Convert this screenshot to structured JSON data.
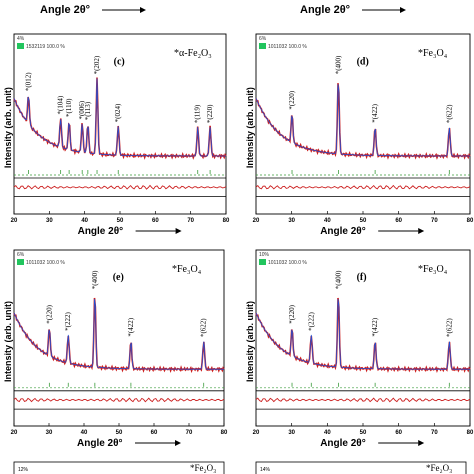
{
  "figure": {
    "top_strip": {
      "left_xlabel": "Angle 2θ°",
      "right_xlabel": "Angle 2θ°"
    },
    "panels": [
      {
        "id": "c",
        "panel_label": "(c)",
        "percent_tag": "4%",
        "card_text": "1532119 100.0 %",
        "phase_label": "*α-Fe₂O₃",
        "ylabel": "Intensity (arb. unit)",
        "xlabel": "Angle 2θ°",
        "xticks": [
          "20",
          "30",
          "40",
          "50",
          "60",
          "70",
          "80"
        ],
        "peaks": [
          {
            "x": 24.1,
            "label": "*(012)"
          },
          {
            "x": 33.2,
            "label": "*(104)"
          },
          {
            "x": 35.6,
            "label": "*(110)"
          },
          {
            "x": 39.3,
            "label": "*(006)"
          },
          {
            "x": 40.9,
            "label": "*(113)"
          },
          {
            "x": 43.5,
            "label": "*(202)"
          },
          {
            "x": 49.5,
            "label": "*(024)"
          },
          {
            "x": 72.0,
            "label": "*(119)"
          },
          {
            "x": 75.5,
            "label": "*(220)"
          }
        ],
        "accent_color": "#22c55e",
        "observed_color": "#cc1f1f",
        "calc_color": "#1f4fd6"
      },
      {
        "id": "d",
        "panel_label": "(d)",
        "percent_tag": "6%",
        "card_text": "1011032 100.0 %",
        "phase_label": "*Fe₃O₄",
        "ylabel": "Intensity (arb. unit)",
        "xlabel": "Angle 2θ°",
        "xticks": [
          "20",
          "30",
          "40",
          "50",
          "60",
          "70",
          "80"
        ],
        "peaks": [
          {
            "x": 30.1,
            "label": "*(220)"
          },
          {
            "x": 43.1,
            "label": "*(400)"
          },
          {
            "x": 53.4,
            "label": "*(422)"
          },
          {
            "x": 74.2,
            "label": "*(622)"
          }
        ],
        "accent_color": "#22c55e",
        "observed_color": "#cc1f1f",
        "calc_color": "#1f4fd6"
      },
      {
        "id": "e",
        "panel_label": "(e)",
        "percent_tag": "6%",
        "card_text": "1011032 100.0 %",
        "phase_label": "*Fe₃O₄",
        "ylabel": "Intensity (arb. unit)",
        "xlabel": "Angle 2θ°",
        "xticks": [
          "20",
          "30",
          "40",
          "50",
          "60",
          "70",
          "80"
        ],
        "peaks": [
          {
            "x": 30.1,
            "label": "*(220)"
          },
          {
            "x": 35.5,
            "label": "*(222)"
          },
          {
            "x": 43.1,
            "label": "*(400)"
          },
          {
            "x": 53.4,
            "label": "*(422)"
          },
          {
            "x": 74.2,
            "label": "*(622)"
          }
        ],
        "accent_color": "#22c55e",
        "observed_color": "#cc1f1f",
        "calc_color": "#1f4fd6"
      },
      {
        "id": "f",
        "panel_label": "(f)",
        "percent_tag": "10%",
        "card_text": "1011032 100.0 %",
        "phase_label": "*Fe₃O₄",
        "ylabel": "Intensity (arb. unit)",
        "xlabel": "Angle 2θ°",
        "xticks": [
          "20",
          "30",
          "40",
          "50",
          "60",
          "70",
          "80"
        ],
        "peaks": [
          {
            "x": 30.1,
            "label": "*(220)"
          },
          {
            "x": 35.5,
            "label": "*(222)"
          },
          {
            "x": 43.1,
            "label": "*(400)"
          },
          {
            "x": 53.4,
            "label": "*(422)"
          },
          {
            "x": 74.2,
            "label": "*(622)"
          }
        ],
        "accent_color": "#22c55e",
        "observed_color": "#cc1f1f",
        "calc_color": "#1f4fd6"
      }
    ],
    "bottom_strip": {
      "left_percent": "12%",
      "left_phase": "*Fe₂O₃",
      "right_percent": "14%",
      "right_phase": "*Fe₂O₃"
    }
  }
}
